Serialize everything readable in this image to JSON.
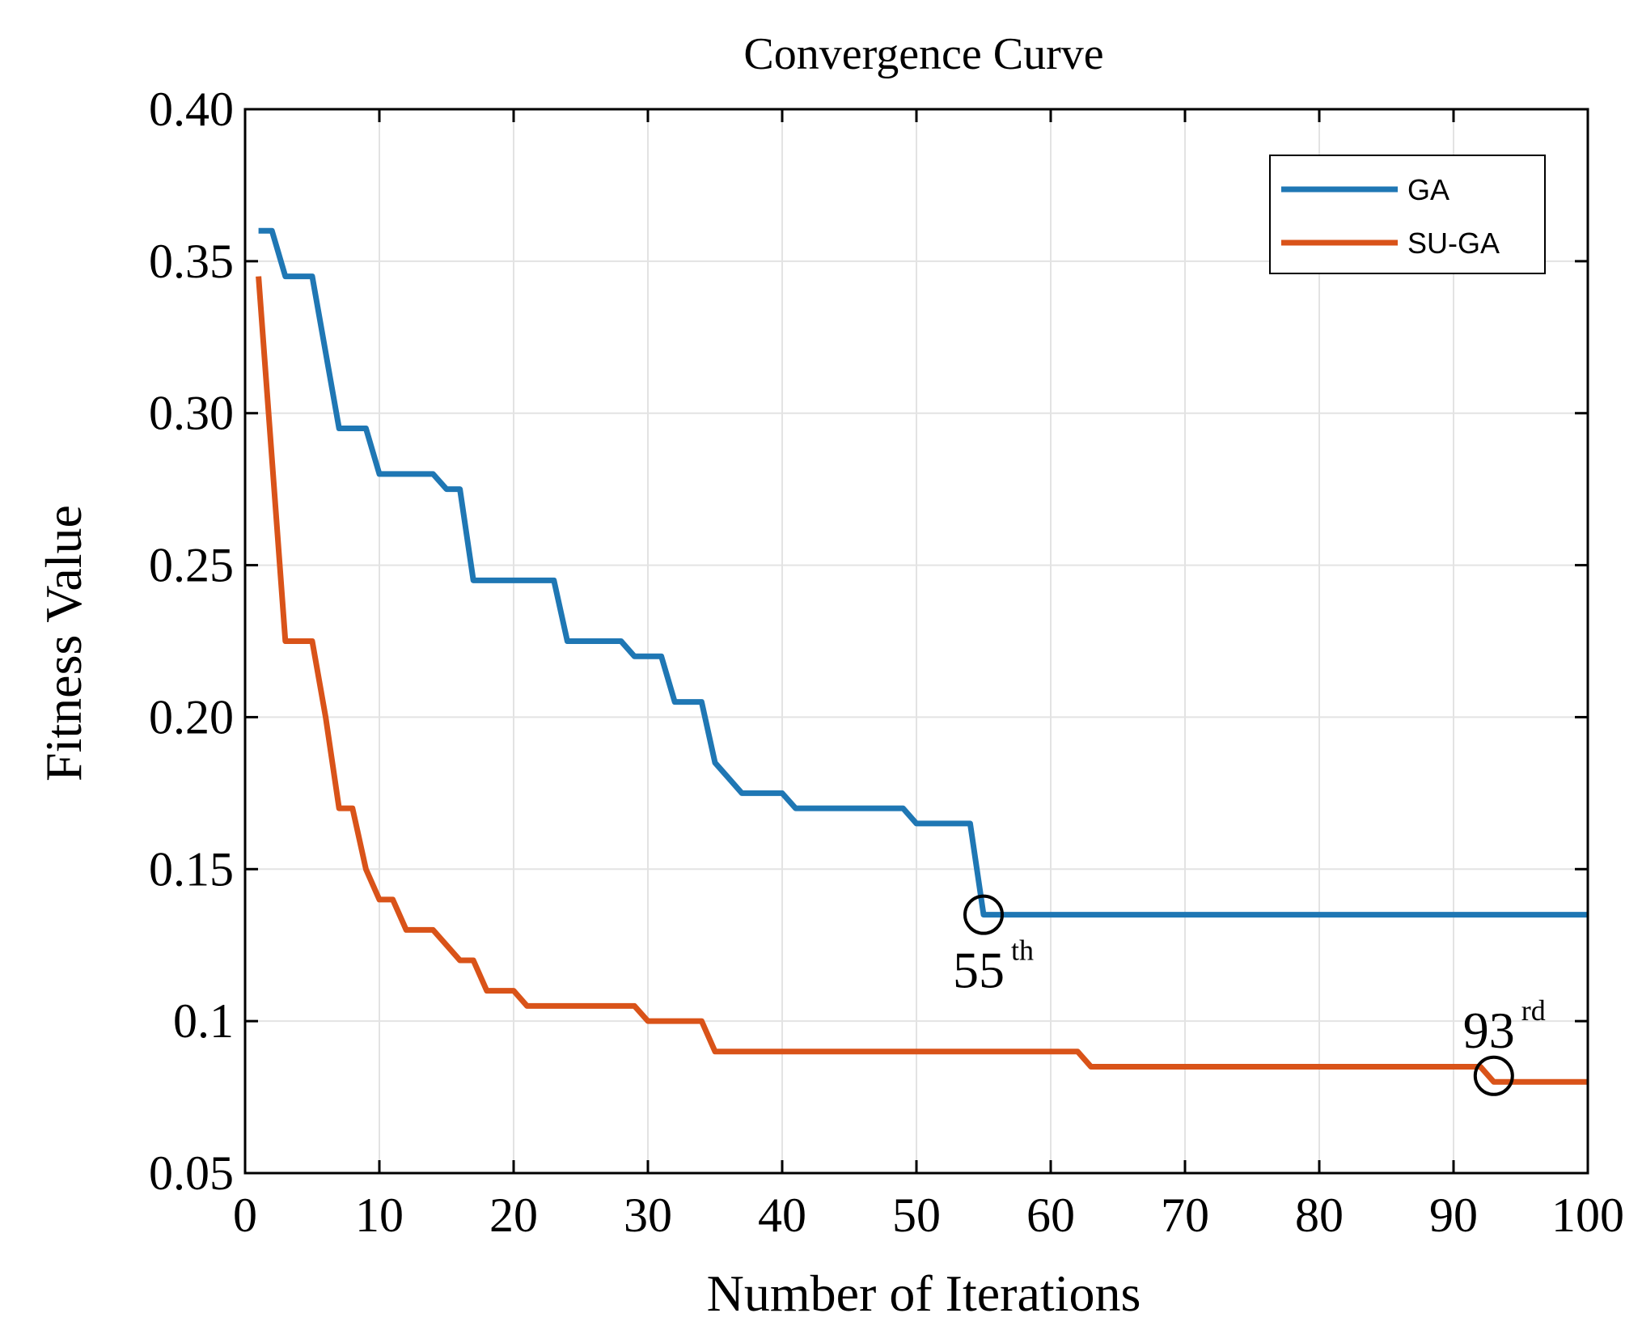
{
  "chart_data": {
    "type": "line",
    "title": "Convergence Curve",
    "xlabel": "Number of Iterations",
    "ylabel": "Fitness Value",
    "xlim": [
      0,
      100
    ],
    "ylim": [
      0.05,
      0.4
    ],
    "xticks": [
      0,
      10,
      20,
      30,
      40,
      50,
      60,
      70,
      80,
      90,
      100
    ],
    "xtick_labels": [
      "0",
      "10",
      "20",
      "30",
      "40",
      "50",
      "60",
      "70",
      "80",
      "90",
      "100"
    ],
    "yticks": [
      0.05,
      0.1,
      0.15,
      0.2,
      0.25,
      0.3,
      0.35,
      0.4
    ],
    "ytick_labels": [
      "0.05",
      "0.1",
      "0.15",
      "0.20",
      "0.25",
      "0.30",
      "0.35",
      "0.40"
    ],
    "grid": true,
    "legend_position": "top-right",
    "series": [
      {
        "name": "GA",
        "color": "#1f77b4",
        "points": [
          [
            1,
            0.36
          ],
          [
            2,
            0.36
          ],
          [
            3,
            0.345
          ],
          [
            4,
            0.345
          ],
          [
            5,
            0.345
          ],
          [
            7,
            0.295
          ],
          [
            8,
            0.295
          ],
          [
            9,
            0.295
          ],
          [
            10,
            0.28
          ],
          [
            11,
            0.28
          ],
          [
            14,
            0.28
          ],
          [
            15,
            0.275
          ],
          [
            16,
            0.275
          ],
          [
            17,
            0.245
          ],
          [
            18,
            0.245
          ],
          [
            23,
            0.245
          ],
          [
            24,
            0.225
          ],
          [
            25,
            0.225
          ],
          [
            28,
            0.225
          ],
          [
            29,
            0.22
          ],
          [
            30,
            0.22
          ],
          [
            31,
            0.22
          ],
          [
            32,
            0.205
          ],
          [
            33,
            0.205
          ],
          [
            34,
            0.205
          ],
          [
            35,
            0.185
          ],
          [
            36,
            0.18
          ],
          [
            37,
            0.175
          ],
          [
            40,
            0.175
          ],
          [
            41,
            0.17
          ],
          [
            49,
            0.17
          ],
          [
            50,
            0.165
          ],
          [
            51,
            0.165
          ],
          [
            54,
            0.165
          ],
          [
            55,
            0.135
          ],
          [
            100,
            0.135
          ]
        ]
      },
      {
        "name": "SU-GA",
        "color": "#d95319",
        "points": [
          [
            1,
            0.345
          ],
          [
            3,
            0.225
          ],
          [
            4,
            0.225
          ],
          [
            5,
            0.225
          ],
          [
            6,
            0.2
          ],
          [
            7,
            0.17
          ],
          [
            8,
            0.17
          ],
          [
            9,
            0.15
          ],
          [
            10,
            0.14
          ],
          [
            11,
            0.14
          ],
          [
            12,
            0.13
          ],
          [
            13,
            0.13
          ],
          [
            14,
            0.13
          ],
          [
            15,
            0.125
          ],
          [
            16,
            0.12
          ],
          [
            17,
            0.12
          ],
          [
            18,
            0.11
          ],
          [
            19,
            0.11
          ],
          [
            20,
            0.11
          ],
          [
            21,
            0.105
          ],
          [
            29,
            0.105
          ],
          [
            30,
            0.1
          ],
          [
            34,
            0.1
          ],
          [
            35,
            0.09
          ],
          [
            62,
            0.09
          ],
          [
            63,
            0.085
          ],
          [
            92,
            0.085
          ],
          [
            93,
            0.08
          ],
          [
            100,
            0.08
          ]
        ]
      }
    ],
    "annotations": [
      {
        "x": 55,
        "y": 0.135,
        "label_main": "55",
        "label_sup": "th",
        "position": "below"
      },
      {
        "x": 93,
        "y": 0.082,
        "label_main": "93",
        "label_sup": "rd",
        "position": "above"
      }
    ]
  }
}
